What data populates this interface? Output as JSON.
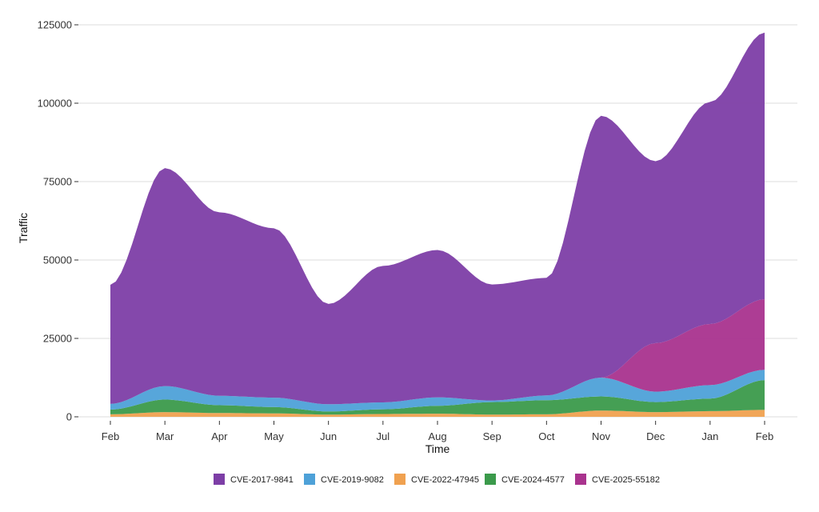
{
  "chart_data": {
    "type": "area",
    "subtype": "streamgraph",
    "xlabel": "Time",
    "ylabel": "Traffic",
    "x_labels": [
      "Feb",
      "Mar",
      "Apr",
      "May",
      "Jun",
      "Jul",
      "Aug",
      "Sep",
      "Oct",
      "Nov",
      "Dec",
      "Jan",
      "Feb"
    ],
    "ylim": [
      0,
      125000
    ],
    "y_ticks": [
      "0",
      "25000",
      "50000",
      "75000",
      "100000",
      "125000"
    ],
    "grid": "horizontal",
    "legend_position": "bottom",
    "series": [
      {
        "name": "CVE-2022-47945",
        "color": "#F0A150",
        "values": [
          800,
          1500,
          1200,
          1100,
          700,
          900,
          1000,
          700,
          800,
          2000,
          1500,
          1800,
          2200
        ]
      },
      {
        "name": "CVE-2024-4577",
        "color": "#3B9A4B",
        "values": [
          1500,
          4000,
          2500,
          2000,
          1000,
          1500,
          2500,
          4000,
          4500,
          4500,
          3200,
          4000,
          9500
        ]
      },
      {
        "name": "CVE-2019-9082",
        "color": "#4EA1D8",
        "values": [
          1800,
          4300,
          3000,
          3000,
          2300,
          2200,
          2700,
          500,
          1500,
          6000,
          3300,
          4300,
          3300
        ]
      },
      {
        "name": "CVE-2025-55182",
        "color": "#A9338E",
        "values": [
          0,
          0,
          0,
          0,
          0,
          0,
          0,
          0,
          0,
          0,
          15500,
          19500,
          22500
        ]
      },
      {
        "name": "CVE-2017-9841",
        "color": "#7D3EA6",
        "values": [
          38000,
          69500,
          58500,
          54000,
          32000,
          43500,
          47000,
          37000,
          37500,
          83500,
          58000,
          70800,
          85000
        ]
      }
    ],
    "legend_order": [
      "CVE-2017-9841",
      "CVE-2019-9082",
      "CVE-2022-47945",
      "CVE-2024-4577",
      "CVE-2025-55182"
    ]
  }
}
